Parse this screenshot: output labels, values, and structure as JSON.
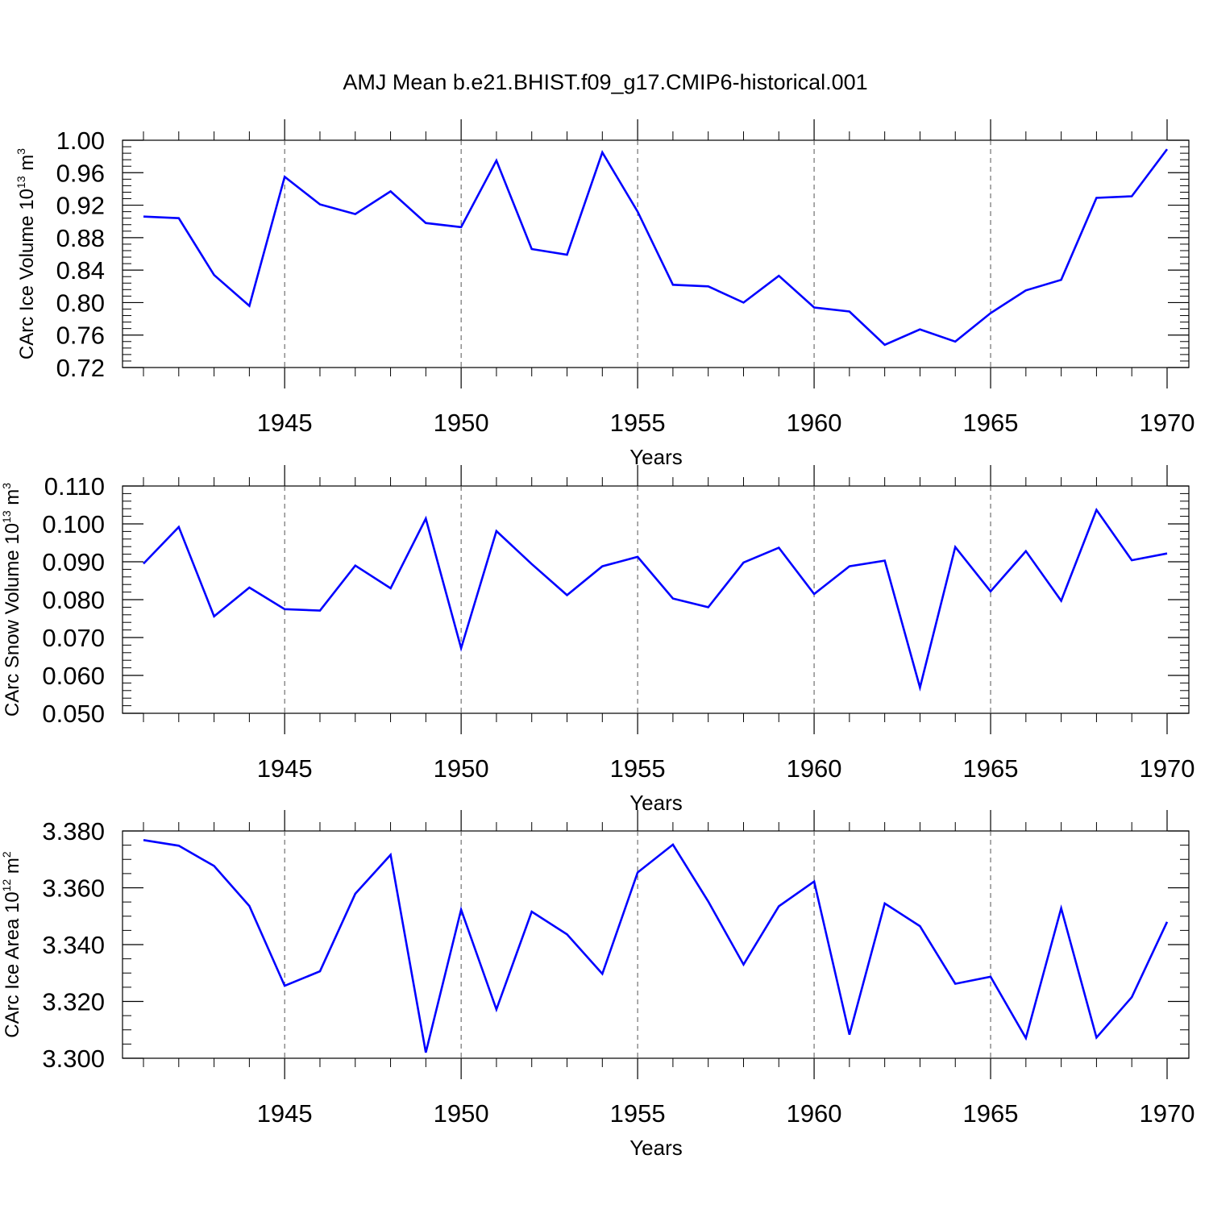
{
  "title": "AMJ Mean b.e21.BHIST.f09_g17.CMIP6-historical.001",
  "colors": {
    "line": "#0000ff",
    "axis": "#000000",
    "grid": "#555555"
  },
  "chart_data": [
    {
      "type": "line",
      "ylabel": {
        "base": "CArc Ice Volume 10",
        "exp": "13",
        "unit": " m",
        "unit_exp": "3"
      },
      "xlabel": "Years",
      "xlim": [
        1941,
        1970
      ],
      "ylim": [
        0.72,
        1.0
      ],
      "yticks": [
        "0.72",
        "0.76",
        "0.80",
        "0.84",
        "0.88",
        "0.92",
        "0.96",
        "1.00"
      ],
      "xticks": [
        "1945",
        "1950",
        "1955",
        "1960",
        "1965",
        "1970"
      ],
      "grid": "vertical dashed at major x ticks",
      "x": [
        1941,
        1942,
        1943,
        1944,
        1945,
        1946,
        1947,
        1948,
        1949,
        1950,
        1951,
        1952,
        1953,
        1954,
        1955,
        1956,
        1957,
        1958,
        1959,
        1960,
        1961,
        1962,
        1963,
        1964,
        1965,
        1966,
        1967,
        1968,
        1969,
        1970
      ],
      "values": [
        0.906,
        0.904,
        0.834,
        0.796,
        0.955,
        0.921,
        0.909,
        0.937,
        0.898,
        0.893,
        0.975,
        0.866,
        0.859,
        0.985,
        0.912,
        0.822,
        0.82,
        0.8,
        0.833,
        0.794,
        0.789,
        0.748,
        0.767,
        0.752,
        0.787,
        0.815,
        0.828,
        0.929,
        0.931,
        0.989
      ]
    },
    {
      "type": "line",
      "ylabel": {
        "base": "CArc Snow Volume 10",
        "exp": "13",
        "unit": " m",
        "unit_exp": "3"
      },
      "xlabel": "Years",
      "xlim": [
        1941,
        1970
      ],
      "ylim": [
        0.05,
        0.11
      ],
      "yticks": [
        "0.050",
        "0.060",
        "0.070",
        "0.080",
        "0.090",
        "0.100",
        "0.110"
      ],
      "xticks": [
        "1945",
        "1950",
        "1955",
        "1960",
        "1965",
        "1970"
      ],
      "grid": "vertical dashed at major x ticks",
      "x": [
        1941,
        1942,
        1943,
        1944,
        1945,
        1946,
        1947,
        1948,
        1949,
        1950,
        1951,
        1952,
        1953,
        1954,
        1955,
        1956,
        1957,
        1958,
        1959,
        1960,
        1961,
        1962,
        1963,
        1964,
        1965,
        1966,
        1967,
        1968,
        1969,
        1970
      ],
      "values": [
        0.0895,
        0.0992,
        0.0756,
        0.0832,
        0.0775,
        0.0771,
        0.089,
        0.083,
        0.1014,
        0.0672,
        0.0981,
        0.0894,
        0.0812,
        0.0888,
        0.0913,
        0.0803,
        0.078,
        0.0898,
        0.0937,
        0.0815,
        0.0888,
        0.0903,
        0.0568,
        0.0939,
        0.0822,
        0.0928,
        0.0797,
        0.1037,
        0.0904,
        0.0922
      ]
    },
    {
      "type": "line",
      "ylabel": {
        "base": "CArc Ice Area 10",
        "exp": "12",
        "unit": " m",
        "unit_exp": "2"
      },
      "xlabel": "Years",
      "xlim": [
        1941,
        1970
      ],
      "ylim": [
        3.3,
        3.38
      ],
      "yticks": [
        "3.300",
        "3.320",
        "3.340",
        "3.360",
        "3.380"
      ],
      "xticks": [
        "1945",
        "1950",
        "1955",
        "1960",
        "1965",
        "1970"
      ],
      "grid": "vertical dashed at major x ticks",
      "x": [
        1941,
        1942,
        1943,
        1944,
        1945,
        1946,
        1947,
        1948,
        1949,
        1950,
        1951,
        1952,
        1953,
        1954,
        1955,
        1956,
        1957,
        1958,
        1959,
        1960,
        1961,
        1962,
        1963,
        1964,
        1965,
        1966,
        1967,
        1968,
        1969,
        1970
      ],
      "values": [
        3.3768,
        3.3748,
        3.3677,
        3.3536,
        3.3255,
        3.3306,
        3.3579,
        3.3716,
        3.302,
        3.3523,
        3.3172,
        3.3516,
        3.3436,
        3.3297,
        3.3654,
        3.3752,
        3.3552,
        3.333,
        3.3535,
        3.3622,
        3.3083,
        3.3545,
        3.3465,
        3.3262,
        3.3287,
        3.3071,
        3.3528,
        3.3073,
        3.3215,
        3.348
      ]
    }
  ]
}
